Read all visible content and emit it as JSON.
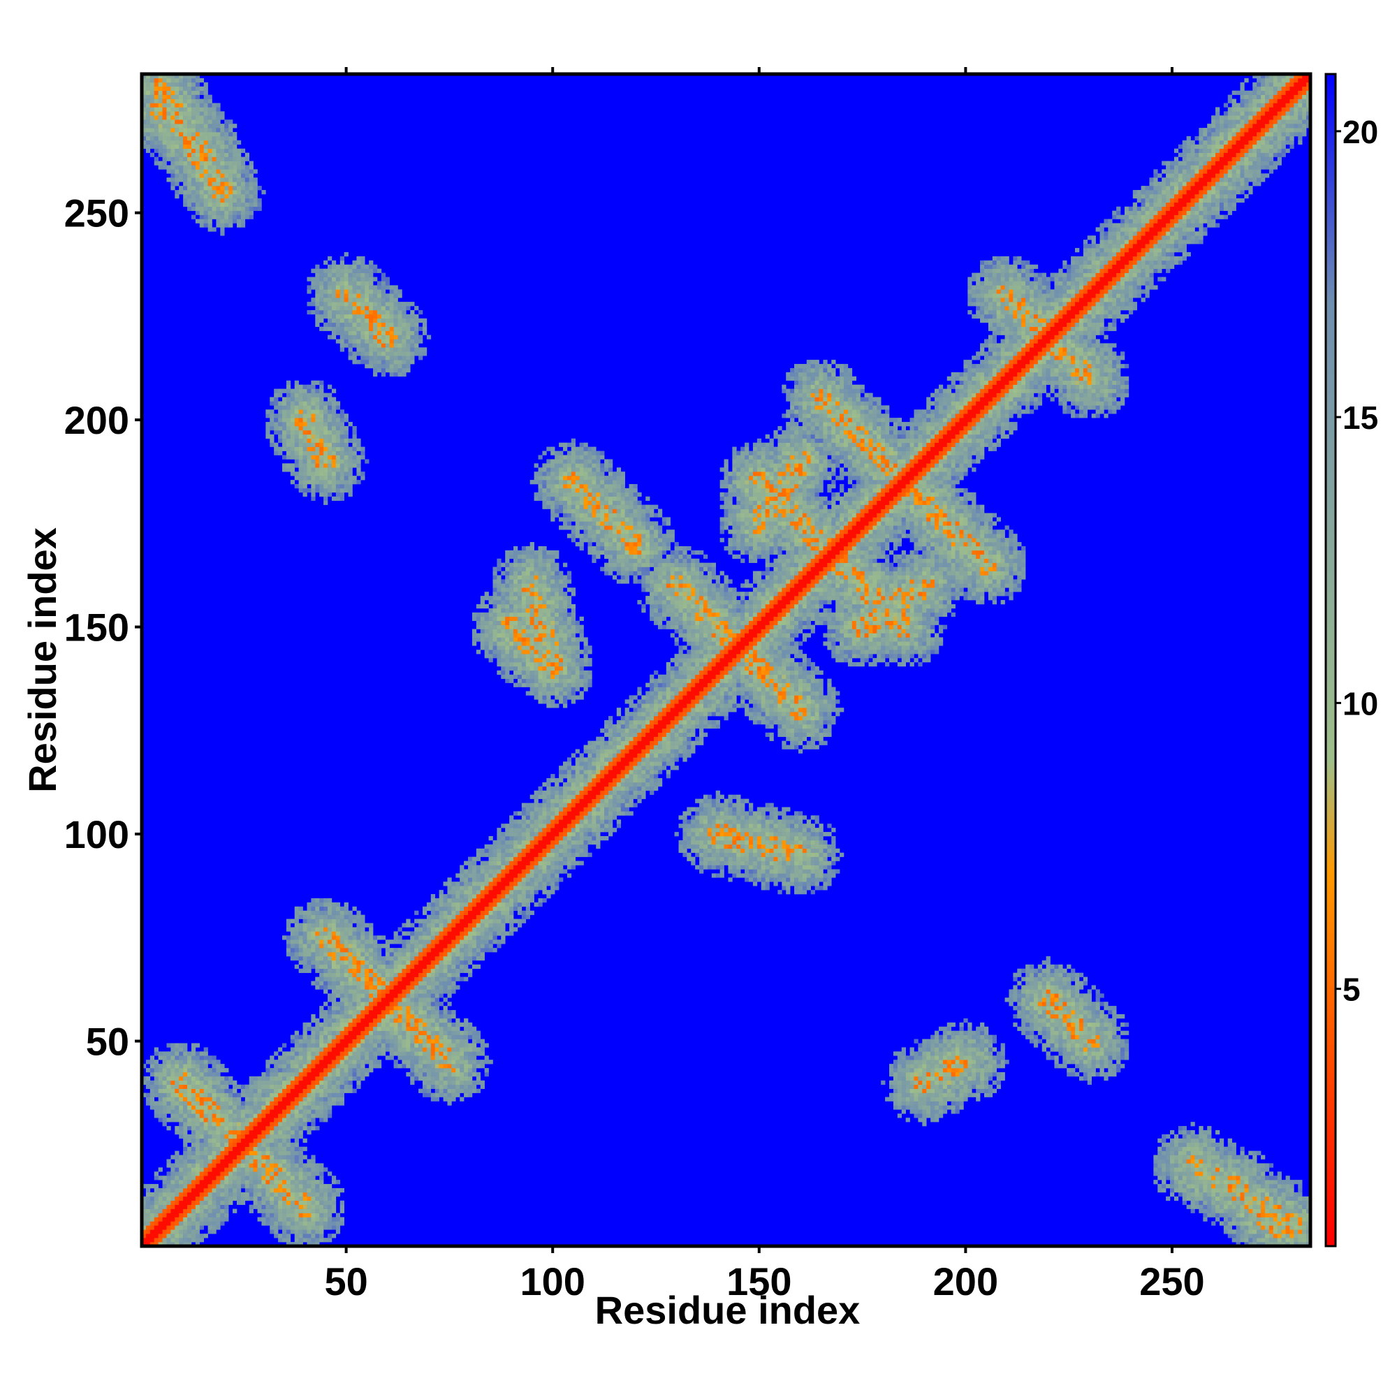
{
  "chart_data": {
    "type": "heatmap",
    "title": "",
    "xlabel": "Residue index",
    "ylabel": "Residue index",
    "x_range": [
      1,
      283
    ],
    "y_range": [
      1,
      283
    ],
    "x_ticks": [
      50,
      100,
      150,
      200,
      250
    ],
    "y_ticks": [
      50,
      100,
      150,
      200,
      250
    ],
    "colorbar": {
      "range": [
        0.5,
        21
      ],
      "ticks": [
        5,
        10,
        15,
        20
      ],
      "colors": [
        "#ff0000",
        "#ff9900",
        "#9fbf8a",
        "#6f8fb0",
        "#0000ff"
      ],
      "color_stops": [
        0.5,
        7,
        9,
        17,
        21
      ]
    },
    "background_value": 21,
    "description_values": "pairwise residue distance map (symmetric); values near diagonal ~1-5, secondary-structure contact bands ~6-15, non-contacts ~21",
    "contact_bands": [
      {
        "i_start": 3,
        "j_start": 3,
        "i_end": 283,
        "j_end": 283,
        "kind": "diagonal"
      },
      {
        "i_start": 10,
        "j_start": 40,
        "i_end": 40,
        "j_end": 10,
        "kind": "antiparallel"
      },
      {
        "i_start": 45,
        "j_start": 75,
        "i_end": 75,
        "j_end": 45,
        "kind": "antiparallel"
      },
      {
        "i_start": 90,
        "j_start": 150,
        "i_end": 100,
        "j_end": 140,
        "kind": "antiparallel"
      },
      {
        "i_start": 105,
        "j_start": 185,
        "i_end": 120,
        "j_end": 170,
        "kind": "antiparallel"
      },
      {
        "i_start": 130,
        "j_start": 160,
        "i_end": 160,
        "j_end": 130,
        "kind": "antiparallel"
      },
      {
        "i_start": 150,
        "j_start": 185,
        "i_end": 185,
        "j_end": 150,
        "kind": "antiparallel"
      },
      {
        "i_start": 165,
        "j_start": 205,
        "i_end": 205,
        "j_end": 165,
        "kind": "antiparallel"
      },
      {
        "i_start": 210,
        "j_start": 230,
        "i_end": 230,
        "j_end": 210,
        "kind": "antiparallel"
      },
      {
        "i_start": 50,
        "j_start": 230,
        "i_end": 60,
        "j_end": 220,
        "kind": "antiparallel"
      },
      {
        "i_start": 220,
        "j_start": 60,
        "i_end": 230,
        "j_end": 50,
        "kind": "antiparallel"
      },
      {
        "i_start": 40,
        "j_start": 200,
        "i_end": 45,
        "j_end": 190,
        "kind": "antiparallel"
      },
      {
        "i_start": 200,
        "j_start": 45,
        "i_end": 190,
        "j_end": 40,
        "kind": "antiparallel"
      },
      {
        "i_start": 140,
        "j_start": 100,
        "i_end": 160,
        "j_end": 95,
        "kind": "parallel"
      },
      {
        "i_start": 100,
        "j_start": 140,
        "i_end": 95,
        "j_end": 160,
        "kind": "parallel"
      },
      {
        "i_start": 175,
        "j_start": 150,
        "i_end": 190,
        "j_end": 160,
        "kind": "parallel"
      },
      {
        "i_start": 150,
        "j_start": 175,
        "i_end": 160,
        "j_end": 190,
        "kind": "parallel"
      },
      {
        "i_start": 5,
        "j_start": 275,
        "i_end": 15,
        "j_end": 265,
        "kind": "parallel"
      },
      {
        "i_start": 275,
        "j_start": 5,
        "i_end": 265,
        "j_end": 15,
        "kind": "parallel"
      },
      {
        "i_start": 255,
        "j_start": 20,
        "i_end": 280,
        "j_end": 5,
        "kind": "parallel"
      },
      {
        "i_start": 20,
        "j_start": 255,
        "i_end": 5,
        "j_end": 280,
        "kind": "parallel"
      }
    ]
  }
}
